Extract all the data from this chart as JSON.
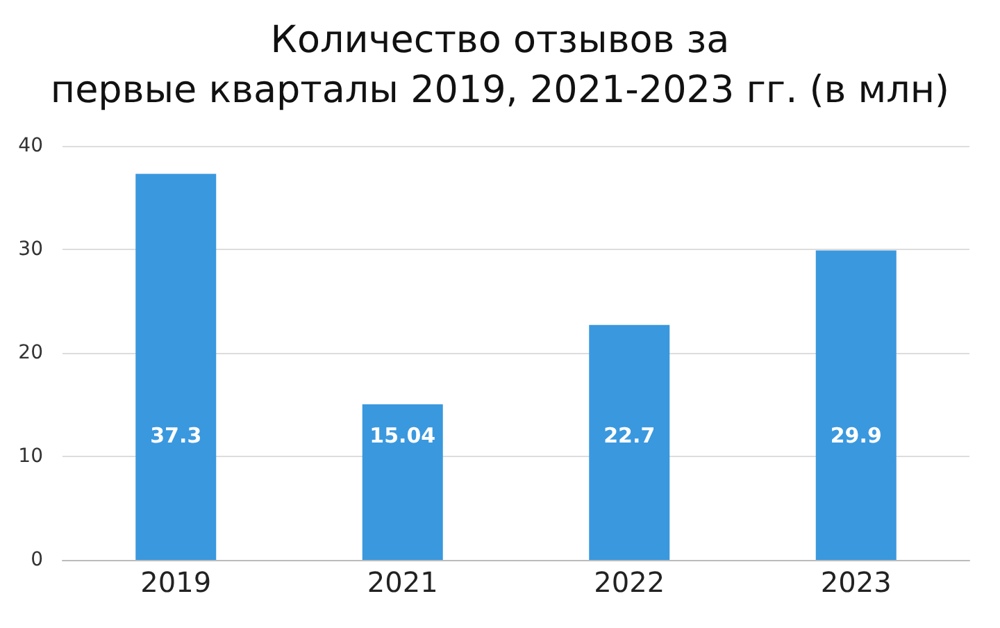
{
  "chart_data": {
    "type": "bar",
    "title": "Количество отзывов за\nпервые кварталы 2019, 2021-2023 гг. (в млн)",
    "categories": [
      "2019",
      "2021",
      "2022",
      "2023"
    ],
    "values": [
      37.3,
      15.04,
      22.7,
      29.9
    ],
    "color": "#3a98de",
    "ylim": [
      0,
      40
    ],
    "yticks": [
      0,
      10,
      20,
      30,
      40
    ],
    "grid": "y",
    "data_labels": true
  }
}
